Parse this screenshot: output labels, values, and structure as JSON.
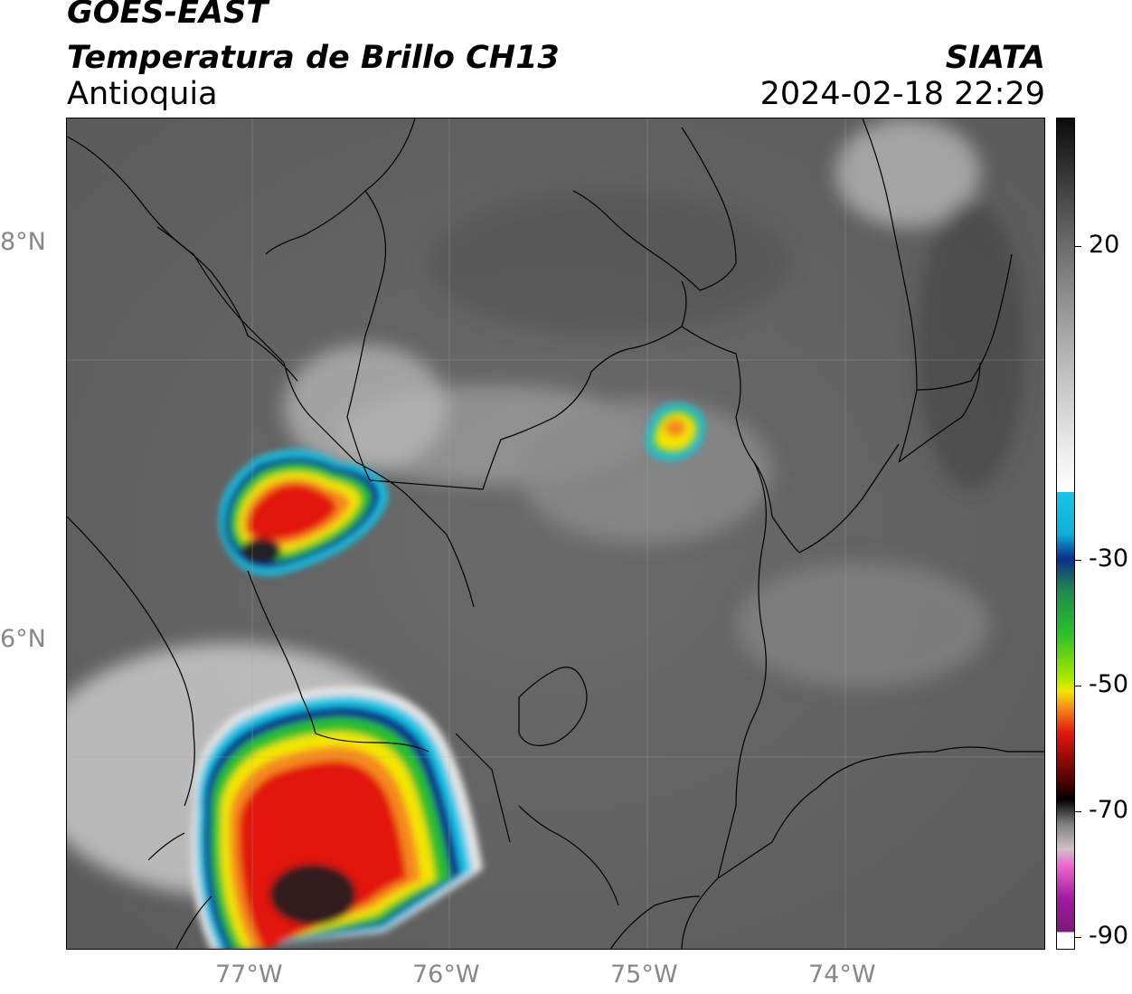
{
  "header": {
    "satellite": "GOES-EAST",
    "product": "Temperatura de Brillo CH13",
    "region": "Antioquia",
    "agency": "SIATA",
    "datetime": "2024-02-18 22:29"
  },
  "axes": {
    "lat_labels": [
      "8°N",
      "6°N"
    ],
    "lon_labels": [
      "77°W",
      "76°W",
      "75°W",
      "74°W"
    ]
  },
  "colorbar": {
    "labels": [
      "20",
      "-30",
      "-50",
      "-70",
      "-90"
    ]
  },
  "colors": {
    "background_gray": "#5f5f5f",
    "cold_core": "#202020",
    "red": "#e2170d",
    "orange": "#f58a1a",
    "yellow": "#f3e600",
    "green": "#2bbf2b",
    "blue": "#0b2f8a",
    "cyan": "#17c6e6"
  }
}
